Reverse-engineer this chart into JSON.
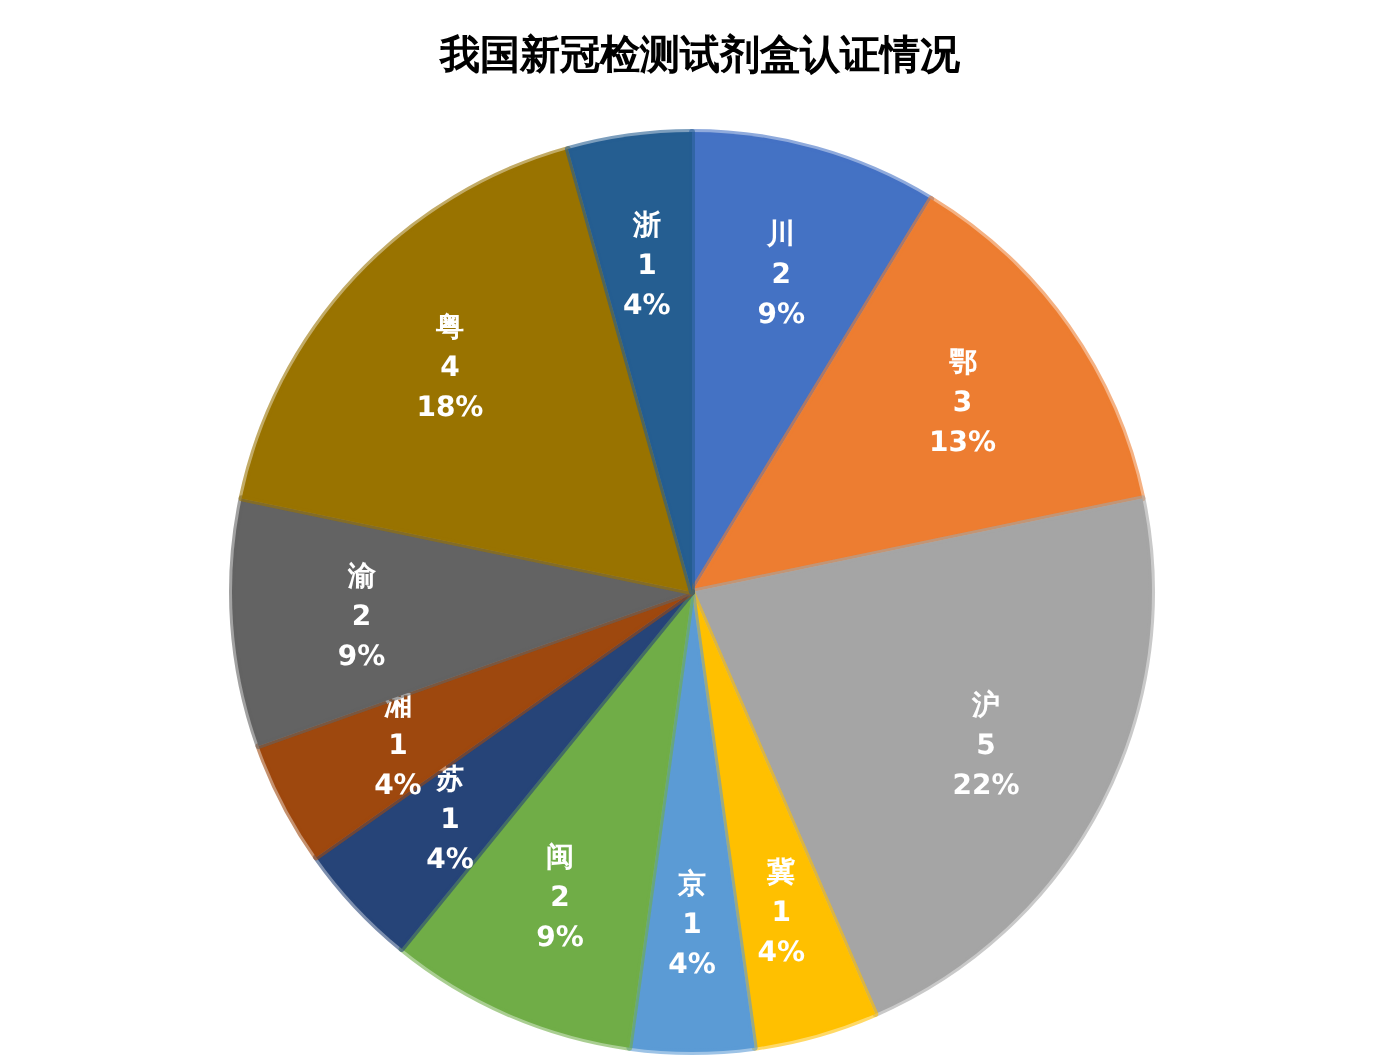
{
  "chart_data": {
    "type": "pie",
    "title": "我国新冠检测试剂盒认证情况",
    "categories": [
      "川",
      "鄂",
      "沪",
      "冀",
      "京",
      "闽",
      "苏",
      "湘",
      "渝",
      "粤",
      "浙"
    ],
    "values": [
      2,
      3,
      5,
      1,
      1,
      2,
      1,
      1,
      2,
      4,
      1
    ],
    "value_labels": [
      "2\n9%",
      "3\n13%",
      "5\n22%",
      "1\n4%",
      "1\n4%",
      "2\n9%",
      "1\n4%",
      "1\n4%",
      "2\n9%",
      "4\n18%",
      "1\n4%"
    ],
    "colors": [
      "#4472c4",
      "#ed7d31",
      "#a5a5a5",
      "#ffc000",
      "#5b9bd5",
      "#70ad47",
      "#264478",
      "#9e480e",
      "#636363",
      "#997300",
      "#255e91"
    ]
  }
}
